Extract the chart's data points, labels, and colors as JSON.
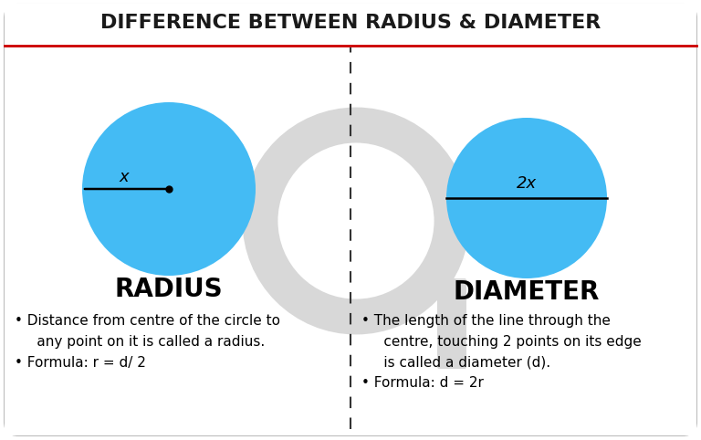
{
  "title": "DIFFERENCE BETWEEN RADIUS & DIAMETER",
  "title_fontsize": 16,
  "title_color": "#1a1a1a",
  "bg_color": "#ffffff",
  "border_color": "#bbbbbb",
  "red_line_color": "#cc0000",
  "divider_color": "#333333",
  "circle_color": "#44bbf4",
  "circle_edge_color": "#44bbf4",
  "left_label": "RADIUS",
  "right_label": "DIAMETER",
  "left_x_label": "x",
  "right_x_label": "2x",
  "left_bullets_line1": "Distance from centre of the circle to",
  "left_bullets_line2": "  any point on it is called a radius.",
  "left_bullets_line3": "Formula: r = d/ 2",
  "right_bullets_line1": "The length of the line through the",
  "right_bullets_line2": "  centre, touching 2 points on its edge",
  "right_bullets_line3": "  is called a diameter (d).",
  "right_bullets_line4": "Formula: d = 2r",
  "watermark_color": "#d8d8d8",
  "label_fontsize": 20,
  "bullet_fontsize": 11
}
